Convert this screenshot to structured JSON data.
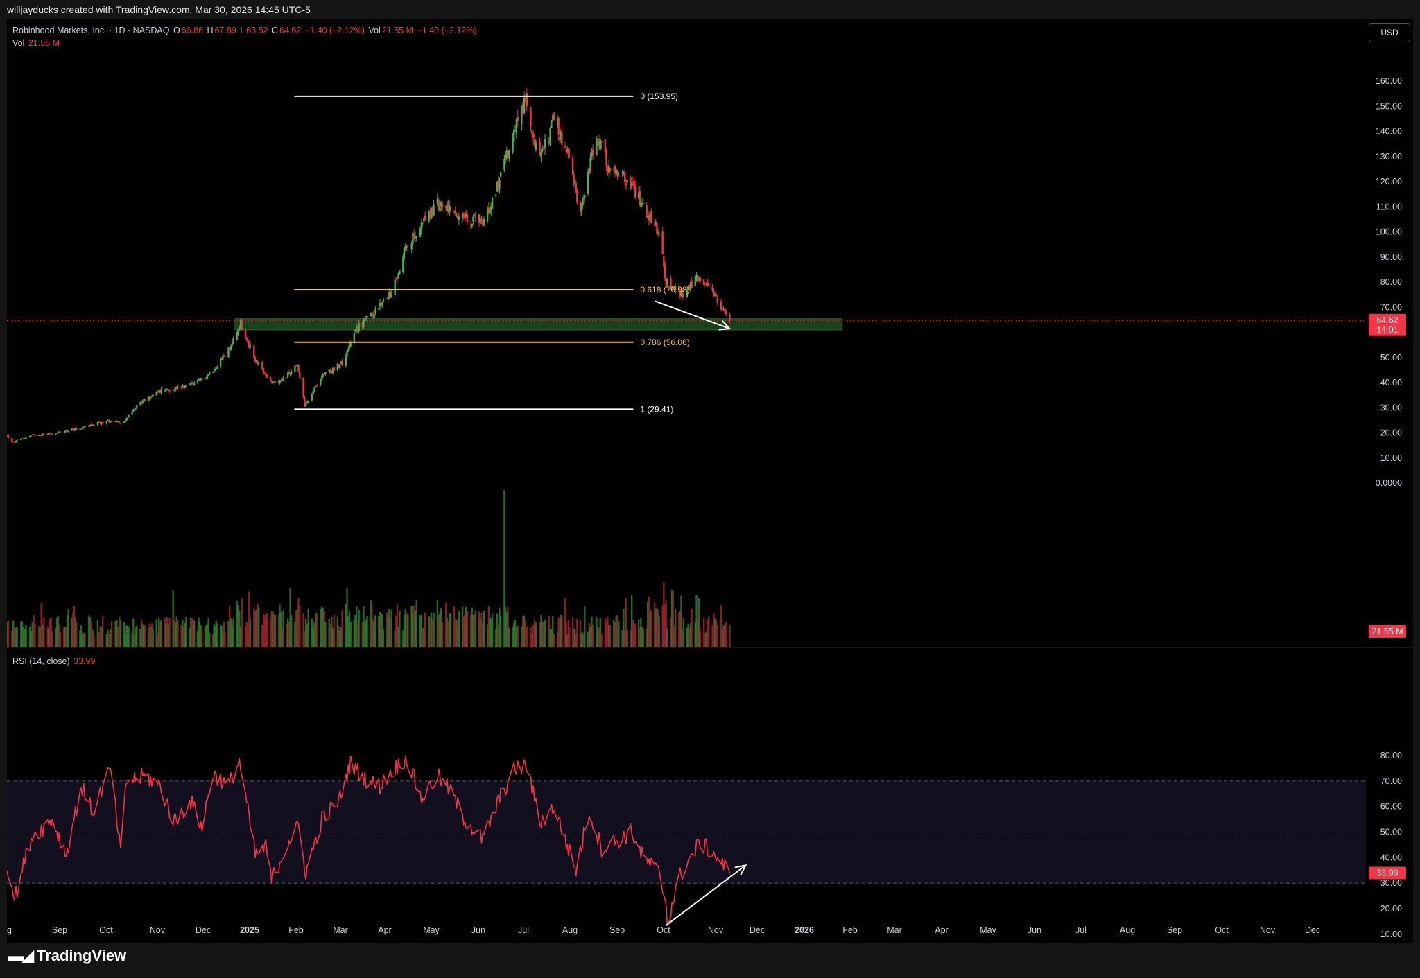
{
  "banner": "willjayducks created with TradingView.com, Mar 30, 2026 14:45 UTC-5",
  "currency_button": "USD",
  "brand": "TradingView",
  "legend": {
    "symbol": "Robinhood Markets, Inc. · 1D · NASDAQ",
    "o_label": "O",
    "o_value": "66.86",
    "h_label": "H",
    "h_value": "67.89",
    "l_label": "L",
    "l_value": "63.52",
    "c_label": "C",
    "c_value": "64.62",
    "change": "−1.40 (−2.12%)",
    "vol_label": "Vol",
    "vol_value": "21.55 M",
    "vol_change": "−1.40 (−2.12%)",
    "vol_row_label": "Vol",
    "vol_row_value": "21.55 M",
    "rsi_label": "RSI (14, close)",
    "rsi_value": "33.99"
  },
  "colors": {
    "up": "#26a69a",
    "down": "#f23645",
    "candle_up": "#4caf50",
    "candle_down": "#f23645",
    "fib_extreme": "#ffffff",
    "fib_mid": "#f5c542",
    "zone": "#1f4d1f",
    "rsi_line": "#f23645",
    "rsi_band": "#120f1e"
  },
  "chart_data": {
    "type": "candlestick",
    "symbol": "HOOD",
    "interval": "1D",
    "x_axis": {
      "labels": [
        "ug",
        "Sep",
        "Oct",
        "Nov",
        "Dec",
        "2025",
        "Feb",
        "Mar",
        "Apr",
        "May",
        "Jun",
        "Jul",
        "Aug",
        "Sep",
        "Oct",
        "Nov",
        "Dec",
        "2026",
        "Feb",
        "Mar",
        "Apr",
        "May",
        "Jun",
        "Jul",
        "Aug",
        "Sep",
        "Oct",
        "Nov",
        "Dec"
      ],
      "range": [
        "2024-08-01",
        "2026-12-31"
      ]
    },
    "price_axis": {
      "ticks": [
        "160.00",
        "150.00",
        "140.00",
        "130.00",
        "120.00",
        "110.00",
        "100.00",
        "90.00",
        "80.00",
        "70.00",
        "60.00",
        "50.00",
        "40.00",
        "30.00",
        "20.00",
        "10.00",
        "0.0000"
      ],
      "range": [
        -5,
        172
      ],
      "last_price_label": "64.62",
      "countdown_label": "14:01",
      "volume_label": "21.55 M"
    },
    "price_series": {
      "months": [
        "Aug 2024",
        "Sep 2024",
        "Oct 2024",
        "Nov 2024",
        "Dec 2024",
        "Jan 2025",
        "Feb 2025",
        "Mar 2025",
        "Apr 2025",
        "May 2025",
        "Jun 2025",
        "Jul 2025",
        "Aug 2025",
        "Sep 2025",
        "Oct 2025",
        "Nov 2025",
        "Dec 2025",
        "Jan 2026",
        "Feb 2026",
        "Mar 2026"
      ],
      "close_anchors": [
        [
          "2024-08-01",
          19
        ],
        [
          "2024-08-05",
          16
        ],
        [
          "2024-08-20",
          19
        ],
        [
          "2024-09-10",
          20
        ],
        [
          "2024-10-01",
          22
        ],
        [
          "2024-10-25",
          25
        ],
        [
          "2024-11-04",
          24
        ],
        [
          "2024-11-15",
          31
        ],
        [
          "2024-12-06",
          37
        ],
        [
          "2024-12-20",
          38
        ],
        [
          "2025-01-06",
          40
        ],
        [
          "2025-01-20",
          45
        ],
        [
          "2025-02-03",
          53
        ],
        [
          "2025-02-13",
          64
        ],
        [
          "2025-02-24",
          50
        ],
        [
          "2025-03-10",
          40
        ],
        [
          "2025-03-20",
          41
        ],
        [
          "2025-04-02",
          47
        ],
        [
          "2025-04-08",
          31
        ],
        [
          "2025-04-21",
          42
        ],
        [
          "2025-05-09",
          48
        ],
        [
          "2025-05-20",
          61
        ],
        [
          "2025-06-05",
          68
        ],
        [
          "2025-06-20",
          76
        ],
        [
          "2025-07-01",
          92
        ],
        [
          "2025-07-15",
          103
        ],
        [
          "2025-07-28",
          111
        ],
        [
          "2025-08-08",
          110
        ],
        [
          "2025-08-20",
          105
        ],
        [
          "2025-09-05",
          104
        ],
        [
          "2025-09-19",
          122
        ],
        [
          "2025-10-03",
          145
        ],
        [
          "2025-10-09",
          152
        ],
        [
          "2025-10-20",
          128
        ],
        [
          "2025-10-31",
          145
        ],
        [
          "2025-11-14",
          128
        ],
        [
          "2025-11-24",
          108
        ],
        [
          "2025-12-08",
          138
        ],
        [
          "2025-12-19",
          124
        ],
        [
          "2026-01-05",
          120
        ],
        [
          "2026-01-16",
          110
        ],
        [
          "2026-01-30",
          100
        ],
        [
          "2026-02-05",
          80
        ],
        [
          "2026-02-20",
          75
        ],
        [
          "2026-03-04",
          82
        ],
        [
          "2026-03-18",
          74
        ],
        [
          "2026-03-30",
          64.62
        ]
      ],
      "last": {
        "open": 66.86,
        "high": 67.89,
        "low": 63.52,
        "close": 64.62
      }
    },
    "fibonacci": [
      {
        "level": "0",
        "price": 153.95,
        "label": "0 (153.95)",
        "color": "#ffffff"
      },
      {
        "level": "0.618",
        "price": 76.98,
        "label": "0.618 (76.98)",
        "color": "#f5c542"
      },
      {
        "level": "0.786",
        "price": 56.06,
        "label": "0.786 (56.06)",
        "color": "#f5c542"
      },
      {
        "level": "1",
        "price": 29.41,
        "label": "1 (29.41)",
        "color": "#ffffff"
      }
    ],
    "fib_start_date": "2025-04-08",
    "fib_end_date": "2025-12-26",
    "support_zone": {
      "from": "2025-02-13",
      "to": "2026-06-28",
      "low": 61,
      "high": 66
    },
    "current_price_line": 64.62,
    "volume": {
      "last": "21.55 M",
      "spike_date": "2025-09-22"
    },
    "rsi": {
      "period": 14,
      "value": 33.99,
      "ticks": [
        "80.00",
        "70.00",
        "60.00",
        "50.00",
        "40.00",
        "30.00",
        "20.00",
        "10.00"
      ],
      "range": [
        6,
        86
      ],
      "band": [
        30,
        70
      ],
      "mid": 50,
      "anchors": [
        [
          "2024-08-01",
          38
        ],
        [
          "2024-08-07",
          24
        ],
        [
          "2024-08-20",
          48
        ],
        [
          "2024-09-06",
          55
        ],
        [
          "2024-09-18",
          41
        ],
        [
          "2024-10-01",
          68
        ],
        [
          "2024-10-10",
          58
        ],
        [
          "2024-10-24",
          75
        ],
        [
          "2024-11-01",
          42
        ],
        [
          "2024-11-06",
          70
        ],
        [
          "2024-11-22",
          72
        ],
        [
          "2024-12-05",
          68
        ],
        [
          "2024-12-17",
          54
        ],
        [
          "2024-12-31",
          62
        ],
        [
          "2025-01-10",
          52
        ],
        [
          "2025-01-20",
          73
        ],
        [
          "2025-02-03",
          68
        ],
        [
          "2025-02-12",
          78
        ],
        [
          "2025-02-25",
          41
        ],
        [
          "2025-03-06",
          44
        ],
        [
          "2025-03-11",
          31
        ],
        [
          "2025-03-25",
          46
        ],
        [
          "2025-04-03",
          52
        ],
        [
          "2025-04-09",
          34
        ],
        [
          "2025-04-22",
          55
        ],
        [
          "2025-05-06",
          62
        ],
        [
          "2025-05-16",
          77
        ],
        [
          "2025-05-30",
          70
        ],
        [
          "2025-06-10",
          68
        ],
        [
          "2025-06-20",
          74
        ],
        [
          "2025-07-03",
          79
        ],
        [
          "2025-07-15",
          63
        ],
        [
          "2025-07-28",
          72
        ],
        [
          "2025-08-08",
          66
        ],
        [
          "2025-08-20",
          55
        ],
        [
          "2025-09-04",
          47
        ],
        [
          "2025-09-18",
          63
        ],
        [
          "2025-10-01",
          75
        ],
        [
          "2025-10-10",
          76
        ],
        [
          "2025-10-20",
          54
        ],
        [
          "2025-10-31",
          60
        ],
        [
          "2025-11-10",
          47
        ],
        [
          "2025-11-20",
          35
        ],
        [
          "2025-12-02",
          58
        ],
        [
          "2025-12-12",
          44
        ],
        [
          "2025-12-26",
          47
        ],
        [
          "2026-01-06",
          50
        ],
        [
          "2026-01-16",
          40
        ],
        [
          "2026-01-30",
          34
        ],
        [
          "2026-02-05",
          22
        ],
        [
          "2026-02-06",
          15
        ],
        [
          "2026-02-17",
          33
        ],
        [
          "2026-02-26",
          40
        ],
        [
          "2026-03-06",
          46
        ],
        [
          "2026-03-18",
          41
        ],
        [
          "2026-03-30",
          33.99
        ]
      ]
    },
    "arrows": [
      {
        "pane": "price",
        "from": [
          "2026-01-26",
          72.5
        ],
        "to": [
          "2026-03-30",
          61.5
        ]
      },
      {
        "pane": "rsi",
        "from": [
          "2026-02-05",
          13.5
        ],
        "to": [
          "2026-04-12",
          37
        ]
      }
    ]
  }
}
